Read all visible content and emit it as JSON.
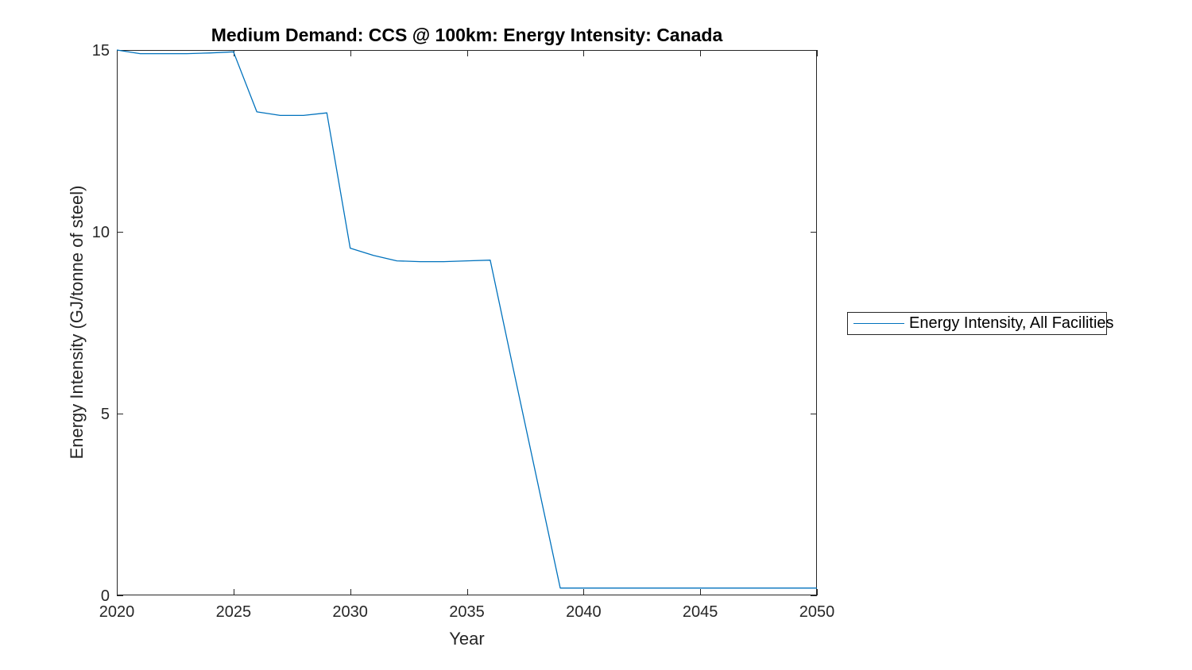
{
  "figure": {
    "background": "#ffffff"
  },
  "chart_data": {
    "type": "line",
    "title": "Medium Demand: CCS @ 100km: Energy Intensity: Canada",
    "xlabel": "Year",
    "ylabel": "Energy Intensity (GJ/tonne of steel)",
    "xlim": [
      2020,
      2050
    ],
    "ylim": [
      0,
      15
    ],
    "x_ticks": [
      2020,
      2025,
      2030,
      2035,
      2040,
      2045,
      2050
    ],
    "y_ticks": [
      0,
      5,
      10,
      15
    ],
    "grid": false,
    "box": true,
    "tick_direction": "in",
    "legend_position": "right-outside",
    "series": [
      {
        "name": "Energy Intensity, All Facilities",
        "color": "#0072BD",
        "x": [
          2020,
          2021,
          2022,
          2023,
          2024,
          2025,
          2026,
          2027,
          2028,
          2029,
          2030,
          2031,
          2032,
          2033,
          2034,
          2035,
          2036,
          2037,
          2038,
          2039,
          2040,
          2041,
          2042,
          2043,
          2044,
          2045,
          2046,
          2047,
          2048,
          2049,
          2050
        ],
        "values": [
          15.0,
          14.9,
          14.9,
          14.9,
          14.92,
          14.95,
          13.3,
          13.2,
          13.2,
          13.27,
          9.55,
          9.35,
          9.2,
          9.18,
          9.18,
          9.2,
          9.22,
          6.2,
          3.2,
          0.2,
          0.2,
          0.2,
          0.2,
          0.2,
          0.2,
          0.2,
          0.2,
          0.2,
          0.2,
          0.2,
          0.2
        ]
      }
    ]
  },
  "colors": {
    "axis": "#262626",
    "tick_label": "#262626",
    "title": "#000000",
    "line": "#0072BD"
  }
}
